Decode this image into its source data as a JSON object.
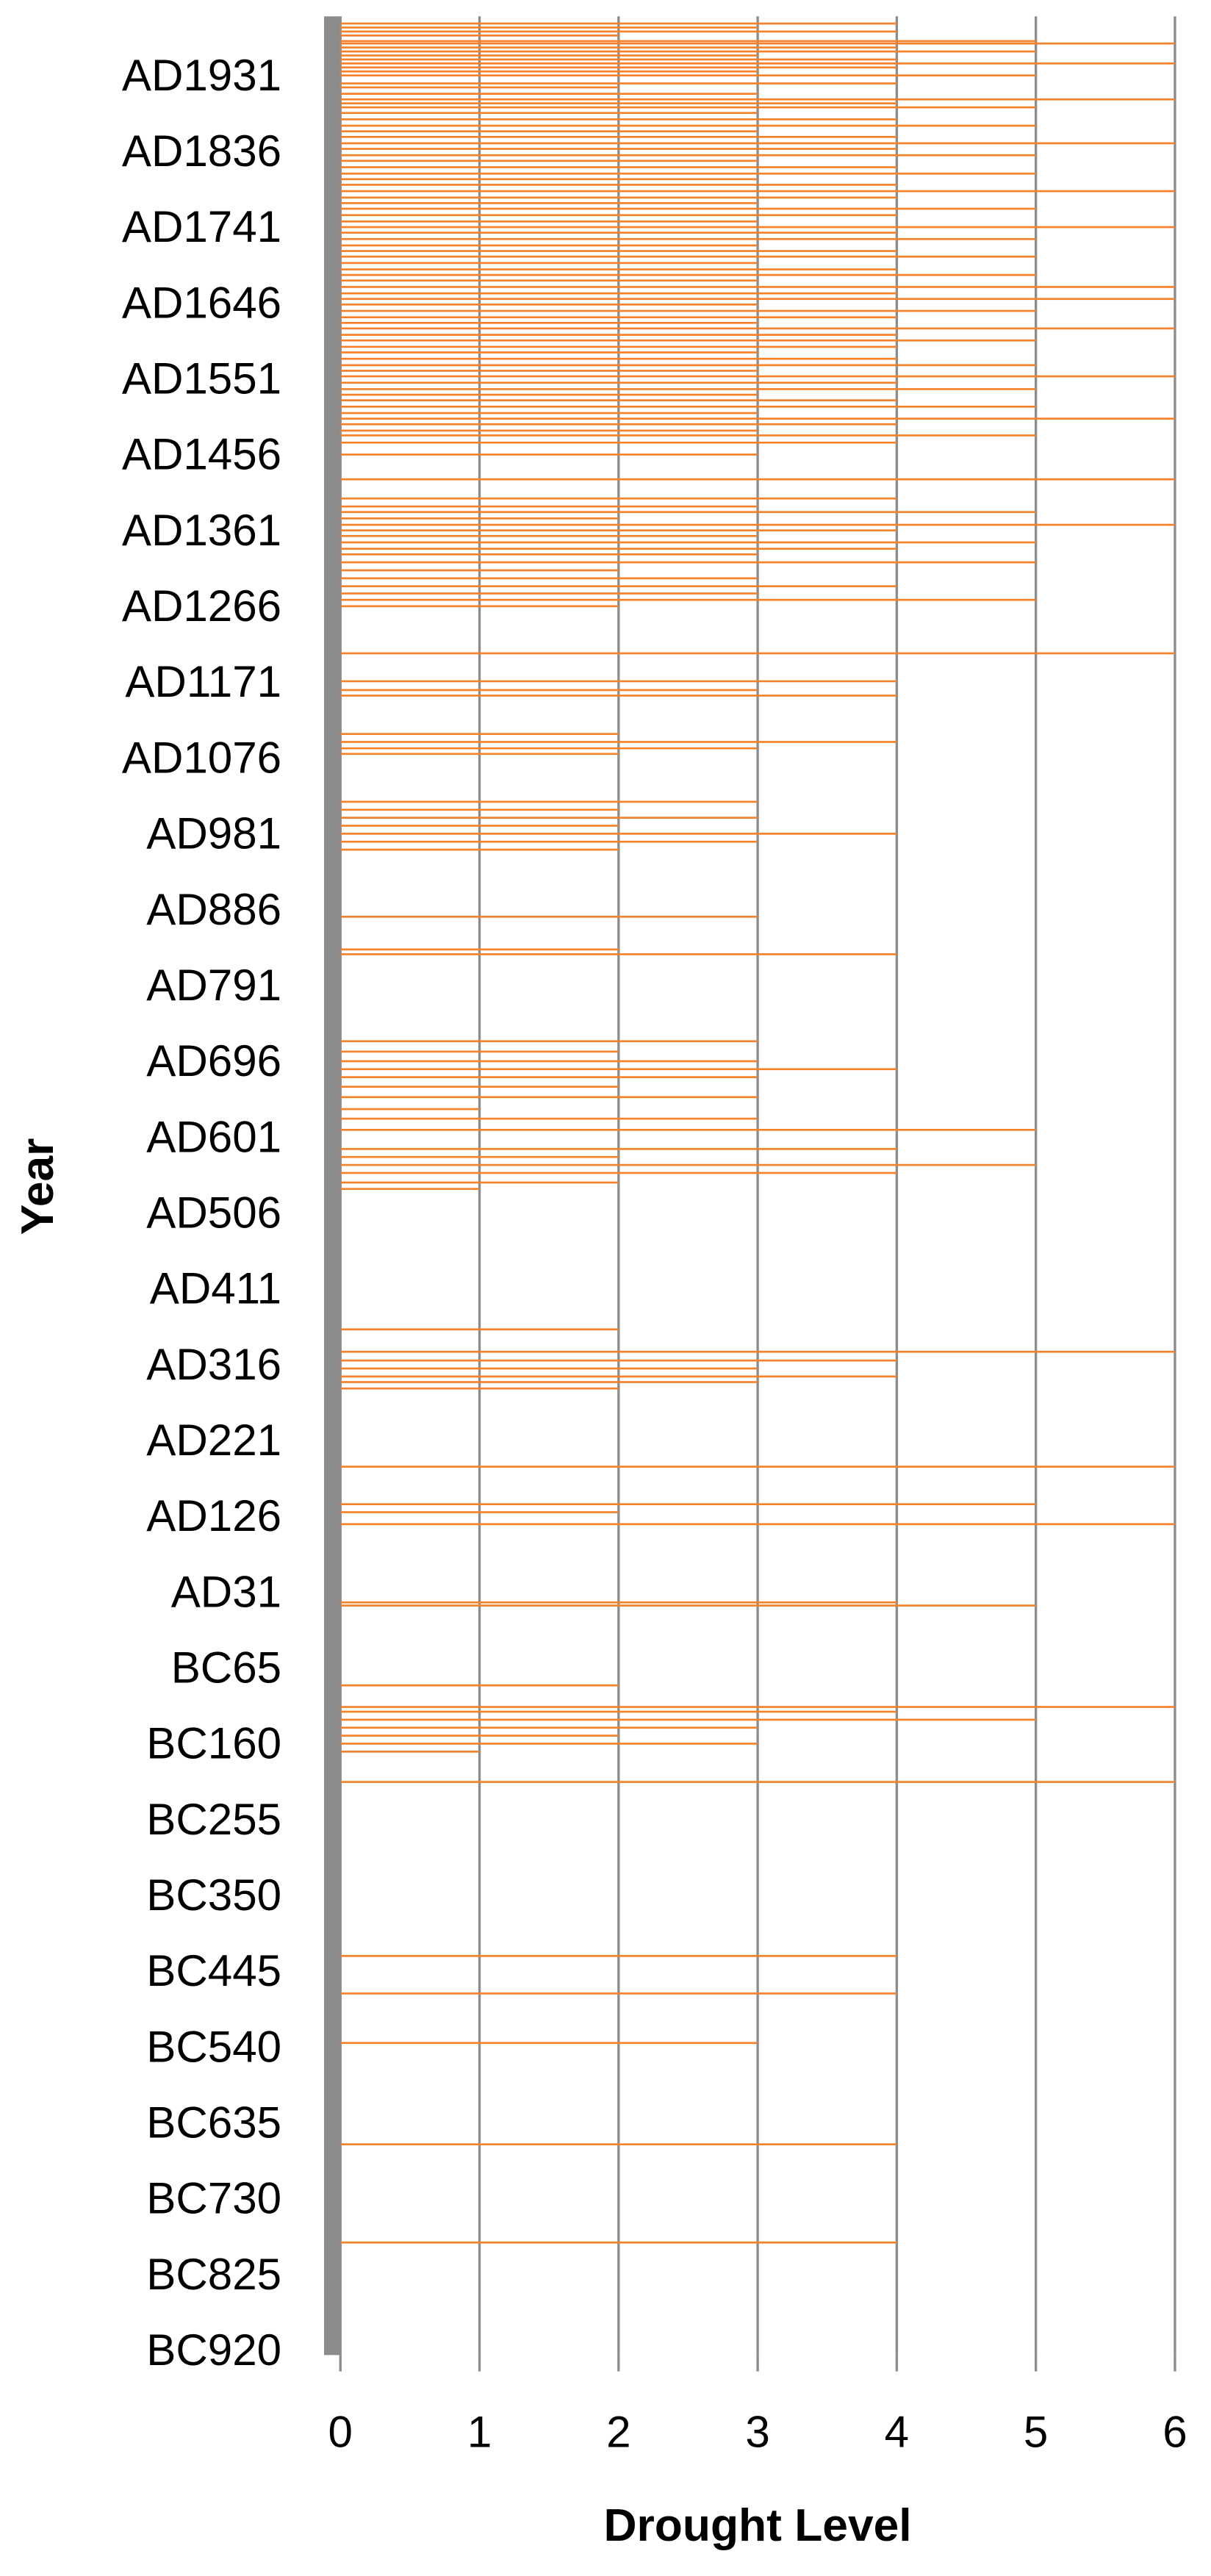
{
  "chart_data": {
    "type": "bar",
    "orientation": "horizontal",
    "xlabel": "Year",
    "ylabel": "Drought Level",
    "color": "#f5822a",
    "grid": true,
    "xlim": [
      -921,
      2009
    ],
    "xticks": [
      {
        "value": 1931,
        "label": "AD1931"
      },
      {
        "value": 1836,
        "label": "AD1836"
      },
      {
        "value": 1741,
        "label": "AD1741"
      },
      {
        "value": 1646,
        "label": "AD1646"
      },
      {
        "value": 1551,
        "label": "AD1551"
      },
      {
        "value": 1456,
        "label": "AD1456"
      },
      {
        "value": 1361,
        "label": "AD1361"
      },
      {
        "value": 1266,
        "label": "AD1266"
      },
      {
        "value": 1171,
        "label": "AD1171"
      },
      {
        "value": 1076,
        "label": "AD1076"
      },
      {
        "value": 981,
        "label": "AD981"
      },
      {
        "value": 886,
        "label": "AD886"
      },
      {
        "value": 791,
        "label": "AD791"
      },
      {
        "value": 696,
        "label": "AD696"
      },
      {
        "value": 601,
        "label": "AD601"
      },
      {
        "value": 506,
        "label": "AD506"
      },
      {
        "value": 411,
        "label": "AD411"
      },
      {
        "value": 316,
        "label": "AD316"
      },
      {
        "value": 221,
        "label": "AD221"
      },
      {
        "value": 126,
        "label": "AD126"
      },
      {
        "value": 31,
        "label": "AD31"
      },
      {
        "value": -64,
        "label": "BC65"
      },
      {
        "value": -159,
        "label": "BC160"
      },
      {
        "value": -254,
        "label": "BC255"
      },
      {
        "value": -349,
        "label": "BC350"
      },
      {
        "value": -444,
        "label": "BC445"
      },
      {
        "value": -539,
        "label": "BC540"
      },
      {
        "value": -634,
        "label": "BC635"
      },
      {
        "value": -729,
        "label": "BC730"
      },
      {
        "value": -824,
        "label": "BC825"
      },
      {
        "value": -919,
        "label": "BC920"
      }
    ],
    "ylim": [
      0,
      6
    ],
    "yticks": [
      0,
      1,
      2,
      3,
      4,
      5,
      6
    ],
    "x": [
      2000,
      1995,
      1990,
      1985,
      1978,
      1975,
      1970,
      1965,
      1960,
      1955,
      1950,
      1945,
      1940,
      1935,
      1925,
      1920,
      1912,
      1905,
      1900,
      1895,
      1888,
      1880,
      1872,
      1865,
      1858,
      1850,
      1843,
      1835,
      1828,
      1820,
      1812,
      1805,
      1798,
      1790,
      1782,
      1775,
      1768,
      1760,
      1752,
      1745,
      1738,
      1730,
      1722,
      1715,
      1708,
      1700,
      1692,
      1685,
      1678,
      1670,
      1662,
      1655,
      1648,
      1640,
      1632,
      1625,
      1618,
      1610,
      1603,
      1595,
      1588,
      1580,
      1572,
      1565,
      1558,
      1550,
      1542,
      1535,
      1528,
      1520,
      1512,
      1505,
      1498,
      1490,
      1484,
      1475,
      1460,
      1429,
      1405,
      1395,
      1388,
      1380,
      1372,
      1365,
      1358,
      1350,
      1342,
      1335,
      1325,
      1315,
      1305,
      1295,
      1286,
      1278,
      1270,
      1211,
      1176,
      1165,
      1158,
      1110,
      1100,
      1092,
      1085,
      1025,
      1015,
      1005,
      995,
      985,
      975,
      965,
      881,
      840,
      834,
      725,
      712,
      700,
      690,
      680,
      668,
      655,
      640,
      628,
      614,
      590,
      580,
      570,
      560,
      548,
      540,
      364,
      336,
      325,
      315,
      305,
      298,
      290,
      192,
      145,
      135,
      120,
      22,
      18,
      -82,
      -109,
      -115,
      -125,
      -135,
      -145,
      -155,
      -165,
      -203,
      -421,
      -468,
      -530,
      -657,
      -780
    ],
    "values": [
      4,
      3,
      4,
      2,
      5,
      6,
      4,
      5,
      3,
      4,
      6,
      4,
      3,
      5,
      4,
      2,
      3,
      6,
      4,
      5,
      3,
      4,
      5,
      3,
      4,
      6,
      4,
      5,
      3,
      4,
      5,
      3,
      4,
      6,
      4,
      3,
      5,
      4,
      3,
      6,
      4,
      5,
      3,
      4,
      5,
      3,
      4,
      5,
      3,
      6,
      4,
      6,
      3,
      5,
      4,
      3,
      6,
      4,
      5,
      4,
      3,
      4,
      5,
      3,
      6,
      4,
      5,
      3,
      4,
      5,
      3,
      6,
      4,
      3,
      5,
      4,
      3,
      6,
      4,
      3,
      5,
      2,
      6,
      4,
      3,
      5,
      4,
      3,
      5,
      2,
      3,
      4,
      3,
      5,
      2,
      6,
      4,
      3,
      4,
      2,
      4,
      3,
      2,
      3,
      2,
      3,
      2,
      4,
      3,
      2,
      3,
      2,
      4,
      3,
      2,
      3,
      4,
      3,
      2,
      3,
      1,
      3,
      5,
      4,
      2,
      5,
      4,
      2,
      1,
      2,
      6,
      4,
      3,
      4,
      3,
      2,
      6,
      5,
      2,
      6,
      4,
      5,
      2,
      6,
      4,
      5,
      3,
      2,
      3,
      1,
      6,
      4,
      4,
      3,
      4,
      4
    ]
  }
}
